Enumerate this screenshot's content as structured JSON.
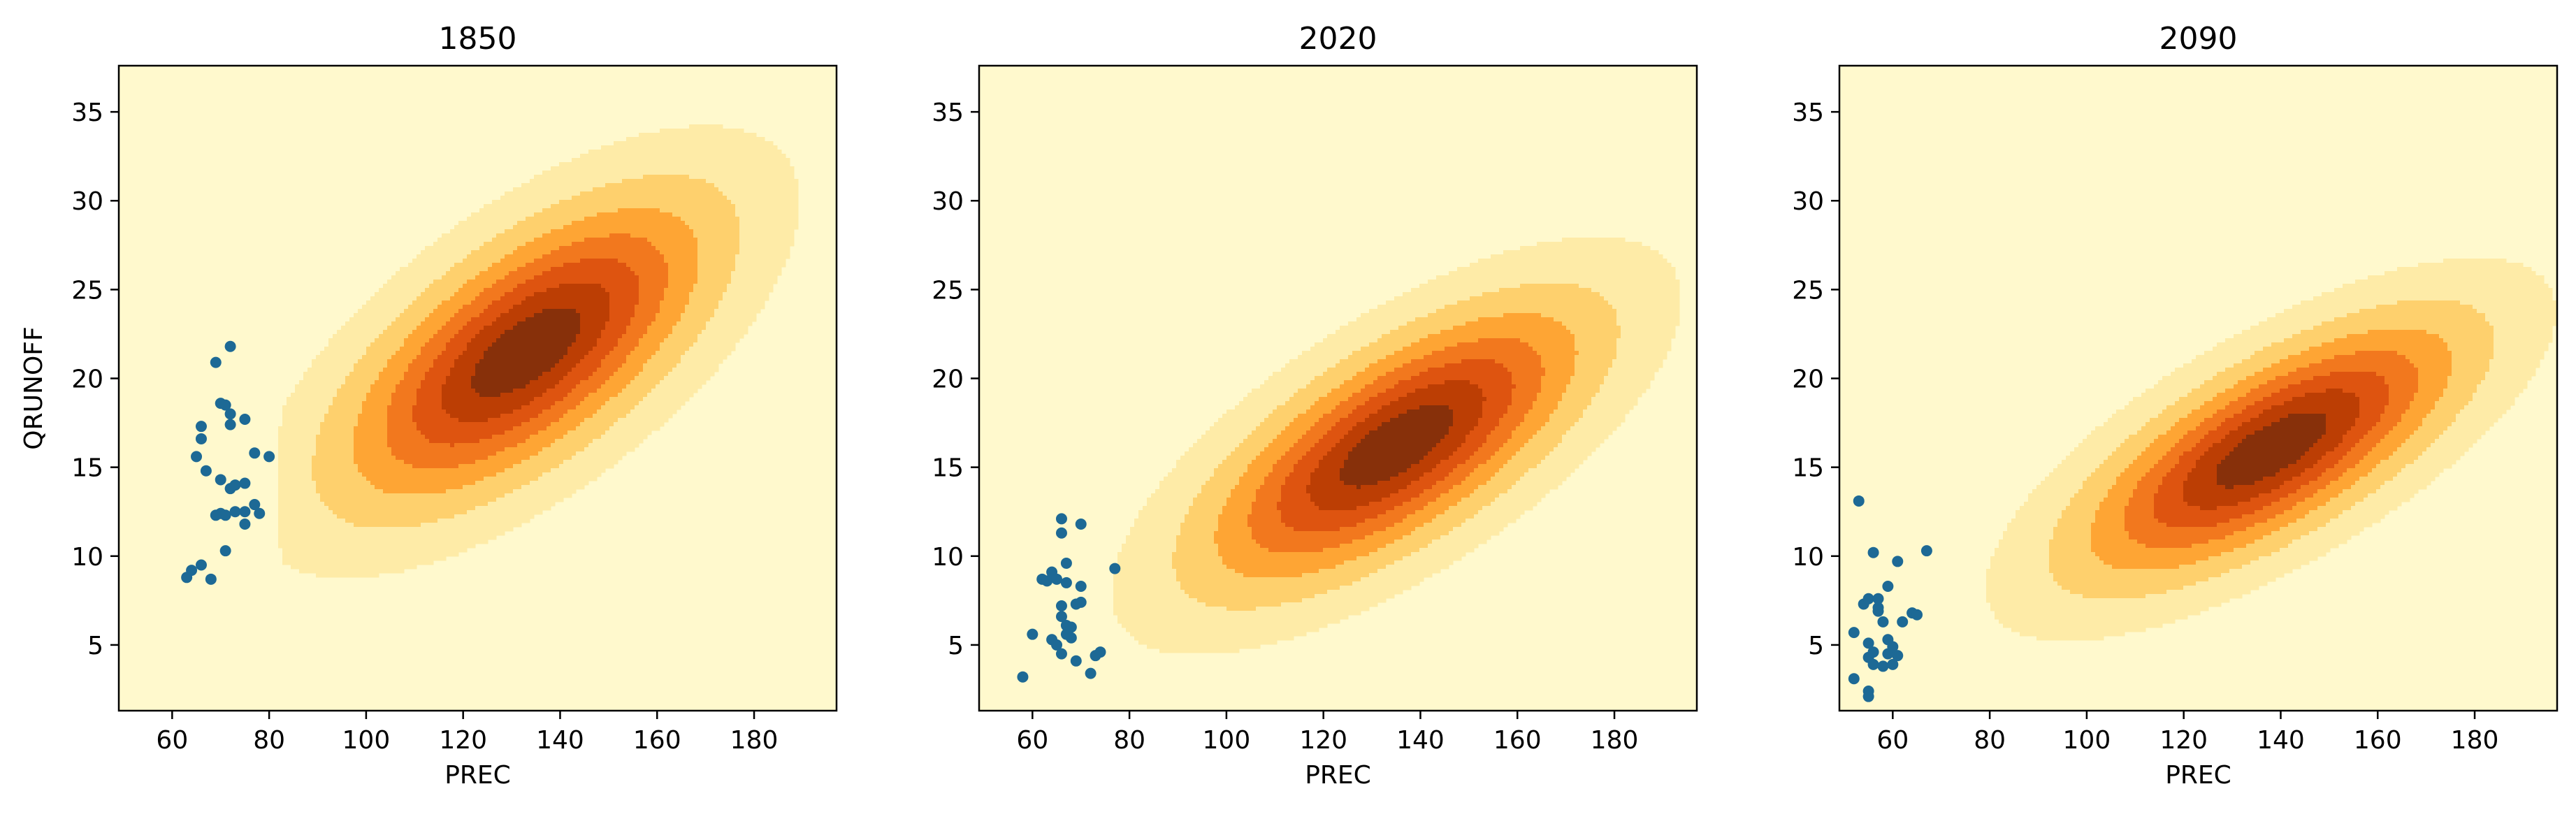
{
  "chart_data": [
    {
      "type": "kde-contour-scatter",
      "title": "1850",
      "xlabel": "PREC",
      "ylabel": "QRUNOFF",
      "xlim": [
        49,
        197
      ],
      "ylim": [
        1.3,
        37.6
      ],
      "xticks": [
        60,
        80,
        100,
        120,
        140,
        160,
        180
      ],
      "yticks": [
        5,
        10,
        15,
        20,
        25,
        30,
        35
      ],
      "kde": {
        "cx": 133,
        "cy": 21.5,
        "sx": 23,
        "sy": 5.2,
        "rho": 0.66,
        "clip_xmin": 83
      },
      "points": [
        [
          63,
          8.8
        ],
        [
          64,
          9.2
        ],
        [
          66,
          9.5
        ],
        [
          68,
          8.7
        ],
        [
          71,
          10.3
        ],
        [
          66,
          16.6
        ],
        [
          66,
          17.3
        ],
        [
          65,
          15.6
        ],
        [
          67,
          14.8
        ],
        [
          69,
          20.9
        ],
        [
          72,
          21.8
        ],
        [
          70,
          18.6
        ],
        [
          71,
          18.5
        ],
        [
          72,
          17.4
        ],
        [
          72,
          18.0
        ],
        [
          75,
          17.7
        ],
        [
          70,
          14.3
        ],
        [
          72,
          13.8
        ],
        [
          73,
          14.0
        ],
        [
          75,
          14.1
        ],
        [
          77,
          15.8
        ],
        [
          80,
          15.6
        ],
        [
          70,
          12.4
        ],
        [
          71,
          12.3
        ],
        [
          69,
          12.3
        ],
        [
          73,
          12.5
        ],
        [
          75,
          11.8
        ],
        [
          75,
          12.5
        ],
        [
          77,
          12.9
        ],
        [
          78,
          12.4
        ]
      ]
    },
    {
      "type": "kde-contour-scatter",
      "title": "2020",
      "xlabel": "PREC",
      "ylabel": "",
      "xlim": [
        49,
        197
      ],
      "ylim": [
        1.3,
        37.6
      ],
      "xticks": [
        60,
        80,
        100,
        120,
        140,
        160,
        180
      ],
      "yticks": [
        5,
        10,
        15,
        20,
        25,
        30,
        35
      ],
      "kde": {
        "cx": 135,
        "cy": 16.2,
        "sx": 24,
        "sy": 4.8,
        "rho": 0.7,
        "clip_xmin": 72
      },
      "points": [
        [
          58,
          3.2
        ],
        [
          60,
          5.6
        ],
        [
          62,
          8.7
        ],
        [
          63,
          8.6
        ],
        [
          64,
          9.1
        ],
        [
          64,
          5.3
        ],
        [
          65,
          5.0
        ],
        [
          65,
          8.7
        ],
        [
          66,
          11.3
        ],
        [
          66,
          12.1
        ],
        [
          67,
          9.6
        ],
        [
          66,
          7.2
        ],
        [
          67,
          8.5
        ],
        [
          67,
          6.1
        ],
        [
          67,
          5.6
        ],
        [
          68,
          6.0
        ],
        [
          68,
          5.4
        ],
        [
          66,
          4.5
        ],
        [
          69,
          4.1
        ],
        [
          69,
          7.3
        ],
        [
          70,
          7.4
        ],
        [
          70,
          8.3
        ],
        [
          70,
          11.8
        ],
        [
          72,
          3.4
        ],
        [
          73,
          4.4
        ],
        [
          74,
          4.6
        ],
        [
          77,
          9.3
        ],
        [
          66,
          6.6
        ]
      ]
    },
    {
      "type": "kde-contour-scatter",
      "title": "2090",
      "xlabel": "PREC",
      "ylabel": "",
      "xlim": [
        49,
        197
      ],
      "ylim": [
        1.3,
        37.6
      ],
      "xticks": [
        60,
        80,
        100,
        120,
        140,
        160,
        180
      ],
      "yticks": [
        5,
        10,
        15,
        20,
        25,
        30,
        35
      ],
      "kde": {
        "cx": 138,
        "cy": 16.0,
        "sx": 24,
        "sy": 4.4,
        "rho": 0.72,
        "clip_xmin": 76
      },
      "points": [
        [
          52,
          3.1
        ],
        [
          52,
          5.7
        ],
        [
          53,
          13.1
        ],
        [
          54,
          7.3
        ],
        [
          55,
          7.6
        ],
        [
          55,
          5.1
        ],
        [
          55,
          4.3
        ],
        [
          56,
          4.6
        ],
        [
          55,
          2.4
        ],
        [
          55,
          2.1
        ],
        [
          56,
          3.9
        ],
        [
          56,
          10.2
        ],
        [
          57,
          7.1
        ],
        [
          57,
          7.6
        ],
        [
          57,
          6.9
        ],
        [
          58,
          6.3
        ],
        [
          58,
          3.8
        ],
        [
          59,
          4.5
        ],
        [
          59,
          5.3
        ],
        [
          59,
          8.3
        ],
        [
          60,
          3.9
        ],
        [
          61,
          4.4
        ],
        [
          61,
          9.7
        ],
        [
          62,
          6.3
        ],
        [
          64,
          6.8
        ],
        [
          65,
          6.7
        ],
        [
          67,
          10.3
        ],
        [
          60,
          4.9
        ]
      ]
    }
  ],
  "colors": {
    "density_levels": [
      "#fff9cd",
      "#feeba7",
      "#fed06d",
      "#fea534",
      "#f2781e",
      "#de5410",
      "#bc3e04",
      "#87300a"
    ],
    "points": "#1d6995",
    "axes": "#000000"
  }
}
